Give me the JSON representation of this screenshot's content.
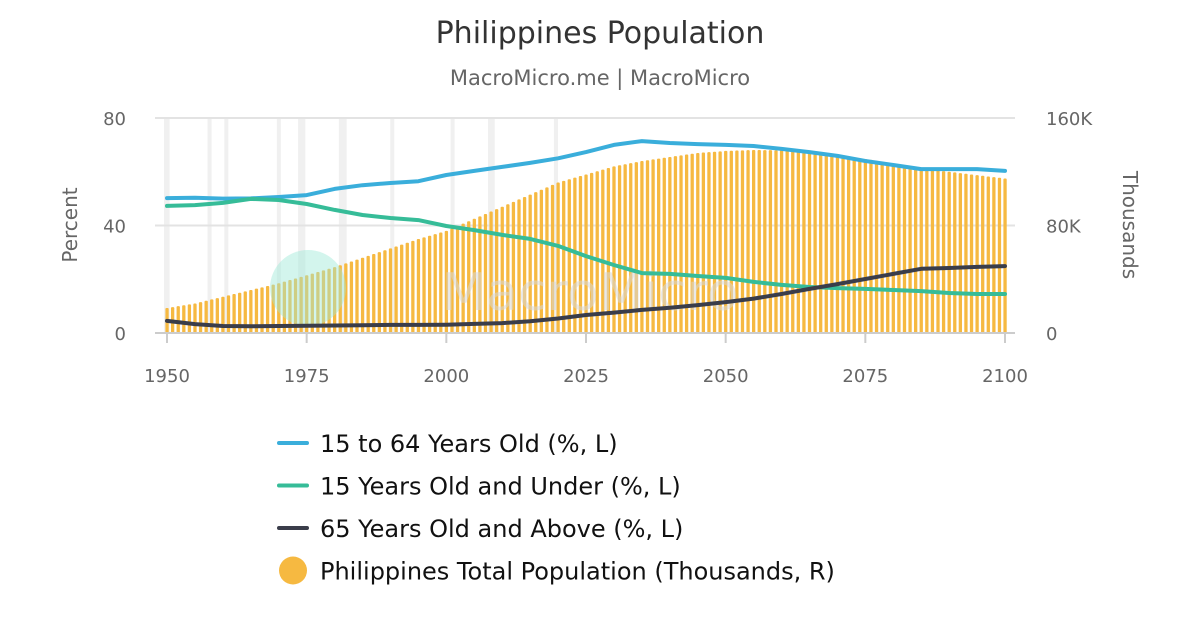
{
  "chart_data": {
    "type": "bar+line",
    "title": "Philippines Population",
    "subtitle": "MacroMicro.me | MacroMicro",
    "watermark": "MacroMicro",
    "xlim": [
      1950,
      2100
    ],
    "xticks": [
      "1950",
      "1975",
      "2000",
      "2025",
      "2050",
      "2075",
      "2100"
    ],
    "y_left": {
      "label": "Percent",
      "ylim": [
        0,
        80
      ],
      "ticks": [
        "0",
        "40",
        "80"
      ]
    },
    "y_right": {
      "label": "Thousands",
      "ylim": [
        0,
        160000
      ],
      "ticks": [
        "0",
        "80K",
        "160K"
      ]
    },
    "grid": true,
    "legend_position": "bottom",
    "shaded_periods": [
      [
        1950,
        1951
      ],
      [
        1957.8,
        1958.4
      ],
      [
        1960.8,
        1961.5
      ],
      [
        1970.2,
        1970.8
      ],
      [
        1974,
        1975.3
      ],
      [
        1981.3,
        1982.7
      ],
      [
        1990.5,
        1991.1
      ],
      [
        2001.3,
        2001.9
      ],
      [
        2008,
        2009.2
      ],
      [
        2019.8,
        2020.4
      ]
    ],
    "x": [
      1950,
      1955,
      1960,
      1965,
      1970,
      1975,
      1980,
      1985,
      1990,
      1995,
      2000,
      2005,
      2010,
      2015,
      2020,
      2025,
      2030,
      2035,
      2040,
      2045,
      2050,
      2055,
      2060,
      2065,
      2070,
      2075,
      2080,
      2085,
      2090,
      2095,
      2100
    ],
    "series": [
      {
        "name": "15 to 64 Years Old (%, L)",
        "type": "line",
        "axis": "left",
        "color": "#3aaedb",
        "values": [
          50.2,
          50.3,
          50,
          50.1,
          50.6,
          51.3,
          53.6,
          55,
          55.8,
          56.5,
          58.8,
          60.3,
          61.8,
          63.3,
          65,
          67.3,
          70,
          71.4,
          70.7,
          70.3,
          70,
          69.6,
          68.5,
          67.3,
          65.9,
          64,
          62.5,
          61,
          61,
          61,
          60.3
        ]
      },
      {
        "name": "15 Years Old and Under (%, L)",
        "type": "line",
        "axis": "left",
        "color": "#36bc98",
        "values": [
          47.3,
          47.6,
          48.4,
          49.9,
          49.5,
          48,
          45.8,
          43.9,
          42.8,
          42,
          39.8,
          38.3,
          36.5,
          35,
          32.4,
          28.6,
          25.3,
          22.3,
          22,
          21.2,
          20.5,
          19,
          17.9,
          17.1,
          16.7,
          16.4,
          16,
          15.6,
          14.9,
          14.5,
          14.5
        ]
      },
      {
        "name": "65 Years Old and Above (%, L)",
        "type": "line",
        "axis": "left",
        "color": "#3a3d4a",
        "values": [
          4.5,
          3.3,
          2.6,
          2.5,
          2.6,
          2.7,
          2.8,
          2.9,
          3,
          3,
          3.1,
          3.4,
          3.7,
          4.4,
          5.4,
          6.7,
          7.6,
          8.6,
          9.4,
          10.4,
          11.5,
          12.8,
          14.5,
          16.4,
          18.2,
          20.1,
          22,
          23.9,
          24.2,
          24.6,
          24.9
        ]
      },
      {
        "name": "Philippines Total Population (Thousands, R)",
        "type": "bar",
        "axis": "right",
        "color": "#f6b941",
        "values": [
          18600,
          22000,
          27000,
          32000,
          37000,
          43000,
          49000,
          56000,
          63000,
          70000,
          76000,
          85000,
          94000,
          103000,
          112000,
          118000,
          124000,
          128000,
          131000,
          134000,
          135500,
          136200,
          136000,
          134500,
          132500,
          129500,
          126000,
          122500,
          120000,
          117500,
          115000
        ]
      }
    ]
  }
}
